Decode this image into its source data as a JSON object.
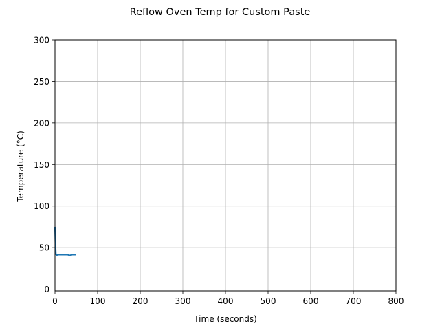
{
  "chart_data": {
    "type": "line",
    "title": "Reflow Oven Temp for Custom Paste",
    "xlabel": "Time (seconds)",
    "ylabel": "Temperature (°C)",
    "xlim": [
      0,
      800
    ],
    "ylim": [
      -2,
      300
    ],
    "xticks": [
      0,
      100,
      200,
      300,
      400,
      500,
      600,
      700,
      800
    ],
    "yticks": [
      0,
      50,
      100,
      150,
      200,
      250,
      300
    ],
    "grid": true,
    "series": [
      {
        "color": "#1f77b4",
        "x": [
          0,
          1,
          2,
          4,
          8,
          15,
          25,
          30,
          35,
          40,
          45,
          50
        ],
        "y": [
          75,
          55,
          42,
          41,
          41.5,
          41.5,
          41.5,
          41.5,
          40.5,
          41.5,
          41.5,
          41.5
        ]
      }
    ]
  }
}
